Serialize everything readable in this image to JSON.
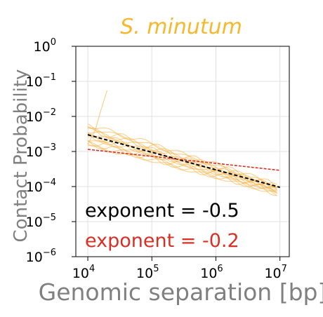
{
  "chart_data": {
    "type": "line",
    "title": "S. minutum",
    "xlabel": "Genomic separation [bp]",
    "ylabel": "Contact Probability",
    "x_scale": "log",
    "y_scale": "log",
    "xlim": [
      6500,
      14000000
    ],
    "ylim": [
      1e-06,
      1
    ],
    "x_ticks": [
      {
        "value": 10000,
        "base": "10",
        "exp": "4"
      },
      {
        "value": 100000,
        "base": "10",
        "exp": "5"
      },
      {
        "value": 1000000,
        "base": "10",
        "exp": "6"
      },
      {
        "value": 10000000,
        "base": "10",
        "exp": "7"
      }
    ],
    "y_ticks": [
      {
        "value": 1e-06,
        "base": "10",
        "exp": "−6"
      },
      {
        "value": 1e-05,
        "base": "10",
        "exp": "−5"
      },
      {
        "value": 0.0001,
        "base": "10",
        "exp": "−4"
      },
      {
        "value": 0.001,
        "base": "10",
        "exp": "−3"
      },
      {
        "value": 0.01,
        "base": "10",
        "exp": "−2"
      },
      {
        "value": 0.1,
        "base": "10",
        "exp": "−1"
      },
      {
        "value": 1,
        "base": "10",
        "exp": "0"
      }
    ],
    "grid": true,
    "series": [
      {
        "style": "orange-curves",
        "color": "#f5b041",
        "count": 14,
        "x": [
          10000,
          30000,
          100000,
          300000,
          1000000,
          3000000,
          9000000
        ],
        "y": [
          0.0029,
          0.0017,
          0.00095,
          0.00052,
          0.00028,
          0.000155,
          8e-05
        ]
      },
      {
        "style": "orange-spike",
        "color": "#f5b041",
        "x": [
          10000,
          13000,
          16000,
          20000
        ],
        "y": [
          0.0016,
          0.004,
          0.015,
          0.055
        ]
      },
      {
        "style": "black-dashed",
        "color": "#000000",
        "x": [
          10000,
          10000000
        ],
        "y": [
          0.003,
          9.5e-05
        ]
      },
      {
        "style": "red-dashed",
        "color": "#d93025",
        "x": [
          10000,
          10000000
        ],
        "y": [
          0.00115,
          0.00029
        ]
      }
    ],
    "annotations": [
      {
        "text": "exponent = -0.5",
        "color": "#000000"
      },
      {
        "text": "exponent = -0.2",
        "color": "#d93025"
      }
    ],
    "colors": {
      "title": "#f5b82e",
      "label": "#808080",
      "grid": "#e0e0e0",
      "axis": "#000000"
    }
  }
}
